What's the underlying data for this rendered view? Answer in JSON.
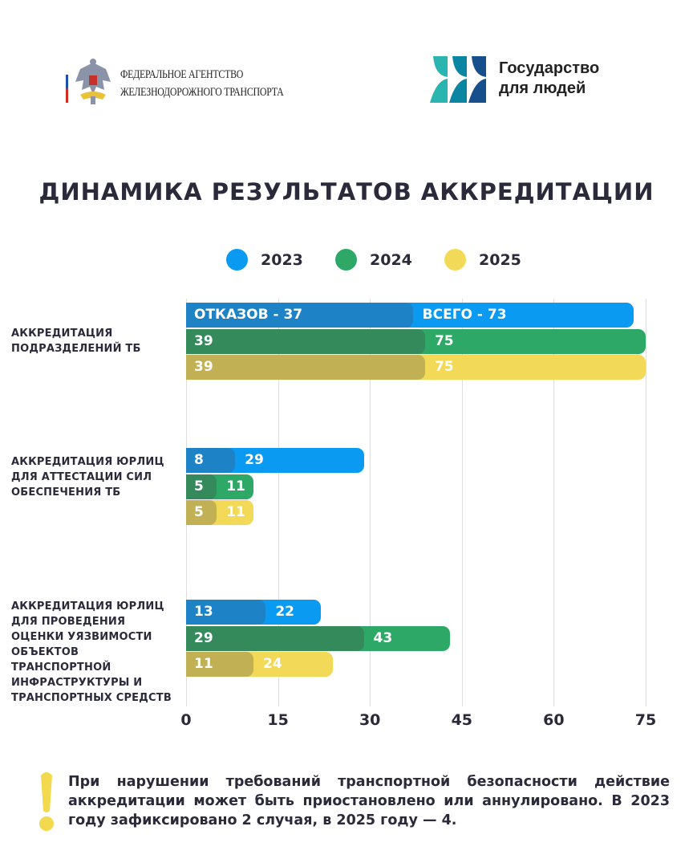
{
  "header": {
    "agency_line1": "ФЕДЕРАЛЬНОЕ АГЕНТСТВО",
    "agency_line2": "ЖЕЛЕЗНОДОРОЖНОГО ТРАНСПОРТА",
    "gos_line1": "Государство",
    "gos_line2": "для людей"
  },
  "chart_data": {
    "type": "bar",
    "orientation": "horizontal",
    "title": "ДИНАМИКА РЕЗУЛЬТАТОВ АККРЕДИТАЦИИ",
    "categories": [
      "АККРЕДИТАЦИЯ ПОДРАЗДЕЛЕНИЙ ТБ",
      "АККРЕДИТАЦИЯ ЮРЛИЦ ДЛЯ АТТЕСТАЦИИ СИЛ ОБЕСПЕЧЕНИЯ ТБ",
      "АККРЕДИТАЦИЯ ЮРЛИЦ ДЛЯ ПРОВЕДЕНИЯ ОЦЕНКИ УЯЗВИМОСТИ ОБЪЕКТОВ ТРАНСПОРТНОЙ ИНФРАСТРУКТУРЫ И ТРАНСПОРТНЫХ СРЕДСТВ"
    ],
    "series": [
      {
        "name": "2023",
        "color": "#0a9af2",
        "dark": "#1d82c6",
        "total": [
          73,
          29,
          22
        ],
        "rejections": [
          37,
          8,
          13
        ]
      },
      {
        "name": "2024",
        "color": "#2ea866",
        "dark": "#358a5b",
        "total": [
          75,
          11,
          43
        ],
        "rejections": [
          39,
          5,
          29
        ]
      },
      {
        "name": "2025",
        "color": "#f2da58",
        "dark": "#c1b054",
        "total": [
          75,
          11,
          24
        ],
        "rejections": [
          39,
          5,
          11
        ]
      }
    ],
    "first_labels": {
      "rejections_prefix": "ОТКАЗОВ - ",
      "total_prefix": "ВСЕГО - "
    },
    "xticks": [
      0,
      15,
      30,
      45,
      60,
      75
    ],
    "xlim": [
      0,
      75
    ],
    "grid": true,
    "legend": "top-center"
  },
  "note": "При нарушении требований транспортной безопасности действие аккредитации может быть приостановлено или аннулировано. В 2023 году зафиксировано 2 случая, в 2025 году — 4."
}
